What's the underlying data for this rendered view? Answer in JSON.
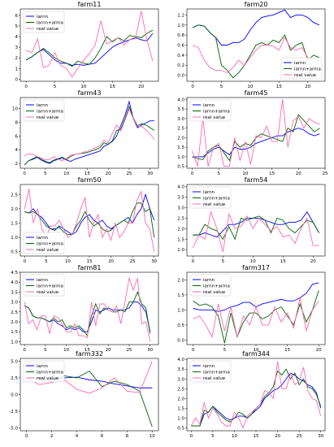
{
  "colors": {
    "iarnn": "#0000ff",
    "iarnn+arma": "#006400",
    "real value": "#ff69b4"
  },
  "chart_data": [
    {
      "type": "line",
      "title": "farm11",
      "legend": "top-left",
      "xlim": [
        -1,
        23
      ],
      "ylim": [
        -0.2,
        6.6
      ],
      "xticks": [
        0,
        5,
        10,
        15,
        20
      ],
      "yticks": [
        0,
        1,
        2,
        3,
        4,
        5,
        6
      ],
      "series": [
        {
          "name": "iarnn",
          "values": [
            1.8,
            2.1,
            2.5,
            2.8,
            2.3,
            1.8,
            1.5,
            1.5,
            1.3,
            1.4,
            1.3,
            1.4,
            1.5,
            2.0,
            2.5,
            3.0,
            3.3,
            3.5,
            3.7,
            3.9,
            3.7,
            3.6,
            4.3
          ]
        },
        {
          "name": "iarnn+arma",
          "values": [
            1.8,
            2.1,
            2.5,
            2.9,
            2.5,
            2.0,
            1.7,
            1.5,
            1.2,
            1.7,
            1.5,
            1.4,
            2.0,
            2.9,
            4.0,
            3.5,
            3.9,
            3.6,
            4.1,
            4.0,
            3.9,
            4.3,
            4.6
          ]
        },
        {
          "name": "real value",
          "values": [
            2.7,
            2.5,
            3.8,
            1.1,
            1.3,
            2.5,
            1.3,
            1.0,
            0.2,
            1.0,
            1.8,
            2.4,
            3.2,
            5.5,
            3.3,
            3.6,
            3.9,
            3.2,
            3.7,
            3.8,
            6.4,
            3.7,
            1.7
          ]
        }
      ]
    },
    {
      "type": "line",
      "title": "farm20",
      "legend": "bottom-right",
      "xlim": [
        -1,
        23
      ],
      "ylim": [
        -0.12,
        1.32
      ],
      "xticks": [
        0,
        5,
        10,
        15,
        20
      ],
      "yticks": [
        0.0,
        0.2,
        0.4,
        0.6,
        0.8,
        1.0,
        1.2
      ],
      "series": [
        {
          "name": "iarnn",
          "values": [
            0.95,
            1.0,
            0.98,
            0.85,
            0.75,
            0.6,
            0.6,
            0.65,
            0.65,
            0.72,
            0.9,
            1.05,
            1.15,
            1.18,
            1.2,
            1.25,
            1.3,
            1.15,
            1.2,
            1.2,
            1.15,
            1.05,
            1.0
          ]
        },
        {
          "name": "iarnn+arma",
          "values": [
            0.95,
            1.0,
            0.98,
            0.85,
            0.75,
            0.2,
            0.1,
            -0.05,
            0.05,
            0.2,
            0.4,
            0.6,
            0.65,
            0.6,
            0.7,
            0.65,
            0.8,
            0.5,
            0.6,
            0.65,
            0.3,
            0.4,
            0.35
          ]
        },
        {
          "name": "real value",
          "values": [
            0.6,
            0.55,
            0.3,
            0.15,
            0.1,
            0.1,
            0.05,
            0.15,
            0.3,
            0.2,
            0.35,
            0.5,
            0.6,
            0.6,
            0.58,
            0.5,
            0.75,
            0.55,
            0.5,
            0.55,
            0.35,
            0.3,
            0.3
          ]
        }
      ]
    },
    {
      "type": "line",
      "title": "farm43",
      "legend": "top-left",
      "xlim": [
        -1,
        32
      ],
      "ylim": [
        1.3,
        11.6
      ],
      "xticks": [
        0,
        5,
        10,
        15,
        20,
        25,
        30
      ],
      "yticks": [
        2,
        4,
        6,
        8,
        10
      ],
      "series": [
        {
          "name": "iarnn",
          "values": [
            1.8,
            2.4,
            2.6,
            2.9,
            2.5,
            2.2,
            2.0,
            2.4,
            2.6,
            2.8,
            2.5,
            2.3,
            2.6,
            2.8,
            3.0,
            3.2,
            3.4,
            3.6,
            3.8,
            4.5,
            4.8,
            5.2,
            6.0,
            7.5,
            9.0,
            11.0,
            8.5,
            7.2,
            7.6,
            7.9,
            8.2,
            8.2
          ]
        },
        {
          "name": "iarnn+arma",
          "values": [
            1.8,
            2.4,
            2.7,
            3.0,
            2.6,
            2.3,
            2.1,
            2.5,
            2.7,
            2.9,
            2.6,
            3.0,
            3.3,
            3.4,
            3.5,
            3.6,
            3.8,
            4.0,
            4.3,
            5.0,
            4.8,
            5.3,
            6.8,
            7.0,
            8.5,
            10.3,
            8.6,
            7.5,
            7.8,
            7.6,
            7.2,
            6.8
          ]
        },
        {
          "name": "real value",
          "values": [
            3.1,
            3.4,
            3.3,
            3.0,
            2.8,
            2.5,
            2.6,
            3.0,
            2.6,
            2.4,
            2.7,
            3.2,
            3.3,
            3.4,
            3.6,
            3.8,
            4.0,
            4.3,
            4.6,
            5.4,
            5.0,
            6.4,
            7.6,
            6.7,
            8.3,
            9.9,
            8.5,
            7.4,
            7.4,
            6.9,
            6.3,
            5.5
          ]
        }
      ]
    },
    {
      "type": "line",
      "title": "farm45",
      "legend": "top-left",
      "xlim": [
        -1,
        25
      ],
      "ylim": [
        0.4,
        4.1
      ],
      "xticks": [
        0,
        5,
        10,
        15,
        20,
        25
      ],
      "yticks": [
        0.5,
        1.0,
        1.5,
        2.0,
        2.5,
        3.0,
        3.5,
        4.0
      ],
      "series": [
        {
          "name": "iarnn",
          "values": [
            1.0,
            1.0,
            1.0,
            1.2,
            1.4,
            1.5,
            1.3,
            1.1,
            1.5,
            1.4,
            1.4,
            1.5,
            1.7,
            1.8,
            1.9,
            2.0,
            2.1,
            2.1,
            2.3,
            2.4,
            2.5,
            2.4,
            2.2,
            2.1,
            2.2
          ]
        },
        {
          "name": "iarnn+arma",
          "values": [
            1.0,
            0.9,
            0.85,
            1.3,
            1.5,
            1.6,
            1.2,
            0.8,
            1.8,
            1.5,
            1.7,
            1.6,
            2.0,
            2.2,
            2.1,
            2.0,
            1.9,
            1.8,
            2.5,
            2.3,
            3.2,
            2.9,
            2.6,
            2.3,
            2.5
          ]
        },
        {
          "name": "real value",
          "values": [
            1.3,
            0.5,
            3.0,
            0.5,
            1.5,
            1.7,
            0.5,
            0.5,
            2.0,
            0.8,
            1.8,
            0.6,
            2.1,
            2.0,
            2.6,
            1.8,
            1.8,
            4.0,
            1.5,
            2.9,
            3.1,
            2.5,
            3.0,
            2.8,
            2.7
          ]
        }
      ]
    },
    {
      "type": "line",
      "title": "farm50",
      "legend": "bottom-left",
      "xlim": [
        -1,
        31
      ],
      "ylim": [
        0.35,
        2.85
      ],
      "xticks": [
        0,
        5,
        10,
        15,
        20,
        25,
        30
      ],
      "yticks": [
        0.5,
        1.0,
        1.5,
        2.0,
        2.5
      ],
      "series": [
        {
          "name": "iarnn",
          "values": [
            1.9,
            1.85,
            2.0,
            1.8,
            1.7,
            1.5,
            1.3,
            1.25,
            1.4,
            1.3,
            1.2,
            1.1,
            1.2,
            1.5,
            1.7,
            1.8,
            1.6,
            1.5,
            1.6,
            1.4,
            1.3,
            1.4,
            1.5,
            1.6,
            1.7,
            1.5,
            1.8,
            2.0,
            2.5,
            2.0,
            1.6
          ]
        },
        {
          "name": "iarnn+arma",
          "values": [
            1.9,
            1.85,
            1.9,
            1.8,
            1.6,
            1.4,
            1.3,
            1.3,
            1.35,
            1.2,
            1.1,
            1.1,
            1.4,
            1.6,
            1.9,
            1.6,
            1.4,
            1.5,
            1.3,
            1.2,
            1.25,
            1.4,
            1.5,
            1.6,
            1.5,
            1.9,
            2.2,
            2.2,
            1.9,
            2.0,
            1.0
          ]
        },
        {
          "name": "real value",
          "values": [
            2.0,
            2.7,
            1.5,
            2.0,
            1.3,
            1.0,
            1.4,
            1.4,
            1.6,
            1.3,
            1.0,
            1.1,
            1.5,
            2.0,
            2.4,
            1.0,
            1.5,
            1.8,
            1.0,
            1.3,
            0.9,
            1.5,
            1.0,
            1.2,
            1.5,
            1.5,
            2.3,
            2.6,
            1.5,
            1.3,
            0.5
          ]
        }
      ]
    },
    {
      "type": "line",
      "title": "farm54",
      "legend": "top-left",
      "xlim": [
        -1,
        22
      ],
      "ylim": [
        0.7,
        4.1
      ],
      "xticks": [
        0,
        5,
        10,
        15,
        20
      ],
      "yticks": [
        1.0,
        1.5,
        2.0,
        2.5,
        3.0,
        3.5,
        4.0
      ],
      "series": [
        {
          "name": "iarnn",
          "values": [
            1.7,
            1.7,
            1.8,
            1.7,
            1.6,
            1.9,
            2.2,
            2.2,
            2.3,
            2.5,
            2.5,
            2.5,
            2.4,
            2.3,
            2.2,
            2.2,
            2.3,
            2.3,
            2.4,
            2.8,
            2.3,
            1.8
          ]
        },
        {
          "name": "iarnn+arma",
          "values": [
            1.7,
            1.7,
            2.2,
            2.0,
            1.9,
            1.5,
            2.1,
            1.5,
            2.5,
            2.4,
            2.5,
            2.6,
            2.4,
            1.8,
            2.5,
            2.4,
            2.0,
            1.8,
            2.1,
            2.4,
            2.3,
            1.8
          ]
        },
        {
          "name": "real value",
          "values": [
            1.1,
            1.7,
            1.5,
            2.8,
            2.0,
            0.9,
            2.7,
            2.0,
            2.1,
            2.6,
            2.0,
            2.5,
            2.2,
            1.9,
            2.1,
            1.6,
            1.7,
            1.3,
            2.0,
            2.5,
            1.2,
            1.2
          ]
        }
      ]
    },
    {
      "type": "line",
      "title": "farm81",
      "legend": "top-left",
      "xlim": [
        -1,
        32
      ],
      "ylim": [
        0.85,
        4.5
      ],
      "xticks": [
        0,
        5,
        10,
        15,
        20,
        25,
        30
      ],
      "yticks": [
        1.0,
        1.5,
        2.0,
        2.5,
        3.0,
        3.5,
        4.0,
        4.5
      ],
      "series": [
        {
          "name": "iarnn",
          "values": [
            2.8,
            2.7,
            2.3,
            2.2,
            2.2,
            2.1,
            2.0,
            2.1,
            1.9,
            1.8,
            1.6,
            1.7,
            1.6,
            1.7,
            1.5,
            1.5,
            2.0,
            2.6,
            2.5,
            2.6,
            2.7,
            2.6,
            2.6,
            2.6,
            2.6,
            2.7,
            3.0,
            3.0,
            2.8,
            2.5,
            1.5
          ]
        },
        {
          "name": "iarnn+arma",
          "values": [
            2.8,
            2.7,
            2.3,
            2.2,
            2.2,
            2.1,
            2.0,
            2.2,
            2.0,
            2.1,
            1.7,
            1.8,
            1.7,
            1.8,
            1.6,
            1.3,
            2.3,
            2.9,
            2.4,
            2.7,
            2.6,
            2.5,
            2.5,
            2.6,
            2.5,
            3.0,
            3.0,
            3.5,
            2.9,
            2.7,
            1.4
          ]
        },
        {
          "name": "real value",
          "values": [
            3.0,
            1.9,
            2.1,
            1.6,
            2.3,
            2.3,
            1.4,
            2.3,
            2.2,
            1.9,
            1.5,
            1.5,
            1.9,
            1.3,
            1.3,
            1.2,
            3.0,
            1.8,
            2.9,
            2.9,
            2.6,
            2.5,
            2.8,
            1.9,
            3.0,
            4.2,
            3.6,
            4.2,
            1.9,
            2.0,
            1.0
          ]
        }
      ]
    },
    {
      "type": "line",
      "title": "farm317",
      "legend": "top-left",
      "xlim": [
        -1,
        21
      ],
      "ylim": [
        -0.15,
        2.25
      ],
      "xticks": [
        0,
        5,
        10,
        15,
        20
      ],
      "yticks": [
        0.0,
        0.5,
        1.0,
        1.5,
        2.0
      ],
      "series": [
        {
          "name": "iarnn",
          "values": [
            1.05,
            1.0,
            1.0,
            1.0,
            0.95,
            1.0,
            1.1,
            1.15,
            1.25,
            1.25,
            1.1,
            1.2,
            1.25,
            1.3,
            1.35,
            1.3,
            1.3,
            1.4,
            1.55,
            1.85,
            1.9
          ]
        },
        {
          "name": "iarnn+arma",
          "values": [
            1.3,
            1.15,
            1.2,
            1.1,
            0.8,
            -0.1,
            0.9,
            0.1,
            0.6,
            0.9,
            0.9,
            0.7,
            0.8,
            1.0,
            1.1,
            0.8,
            0.5,
            1.2,
            0.6,
            1.0,
            1.65
          ]
        },
        {
          "name": "real value",
          "values": [
            0.7,
            0.8,
            0.5,
            0.1,
            1.2,
            0.3,
            1.1,
            0.1,
            0.8,
            0.5,
            1.1,
            0.5,
            0.5,
            1.1,
            0.6,
            0.9,
            0.4,
            1.4,
            0.3,
            1.0,
            1.3
          ]
        }
      ]
    },
    {
      "type": "line",
      "title": "farm332",
      "legend": "top-left",
      "xlim": [
        -0.5,
        10.5
      ],
      "ylim": [
        -5.4,
        5.4
      ],
      "xticks": [
        0,
        2,
        4,
        6,
        8,
        10
      ],
      "yticks": [
        -5.0,
        -2.5,
        0.0,
        2.5,
        5.0
      ],
      "series": [
        {
          "name": "iarnn",
          "values": [
            2.5,
            2.5,
            2.3,
            2.5,
            2.6,
            2.2,
            2.0,
            1.6,
            1.3,
            1.0,
            1.0
          ]
        },
        {
          "name": "iarnn+arma",
          "values": [
            2.5,
            2.4,
            2.0,
            2.8,
            2.5,
            3.5,
            1.2,
            2.0,
            1.5,
            0.5,
            -4.8
          ]
        },
        {
          "name": "real value",
          "values": [
            2.5,
            1.5,
            1.8,
            2.2,
            0.8,
            0.2,
            1.0,
            2.5,
            0.5,
            0.3,
            5.0
          ]
        }
      ]
    },
    {
      "type": "line",
      "title": "farm344",
      "legend": "top-left",
      "xlim": [
        -1,
        31
      ],
      "ylim": [
        0.35,
        4.05
      ],
      "xticks": [
        0,
        5,
        10,
        15,
        20,
        25,
        30
      ],
      "yticks": [
        0.5,
        1.0,
        1.5,
        2.0,
        2.5,
        3.0,
        3.5,
        4.0
      ],
      "series": [
        {
          "name": "iarnn",
          "values": [
            0.6,
            0.6,
            0.6,
            1.2,
            1.3,
            1.6,
            1.4,
            1.2,
            1.0,
            0.9,
            1.0,
            1.1,
            1.1,
            1.0,
            1.2,
            1.4,
            1.6,
            2.0,
            2.2,
            2.4,
            2.5,
            2.7,
            3.0,
            3.3,
            3.2,
            3.0,
            2.9,
            2.7,
            2.6,
            2.3,
            1.5
          ]
        },
        {
          "name": "iarnn+arma",
          "values": [
            0.6,
            0.6,
            0.6,
            1.4,
            1.3,
            1.6,
            1.3,
            1.1,
            0.9,
            0.8,
            1.0,
            1.3,
            1.2,
            1.0,
            1.2,
            1.5,
            1.7,
            2.1,
            2.3,
            2.6,
            3.4,
            3.2,
            3.5,
            3.0,
            3.3,
            2.7,
            3.0,
            2.6,
            2.5,
            2.2,
            1.6
          ]
        },
        {
          "name": "real value",
          "values": [
            0.6,
            1.0,
            0.7,
            1.8,
            1.0,
            1.5,
            1.2,
            0.8,
            0.6,
            0.6,
            1.3,
            1.0,
            0.5,
            1.1,
            1.3,
            1.5,
            1.7,
            2.4,
            2.3,
            2.0,
            3.9,
            2.5,
            2.5,
            3.3,
            2.7,
            2.9,
            3.6,
            2.4,
            2.0,
            1.9,
            1.1
          ]
        }
      ]
    }
  ]
}
